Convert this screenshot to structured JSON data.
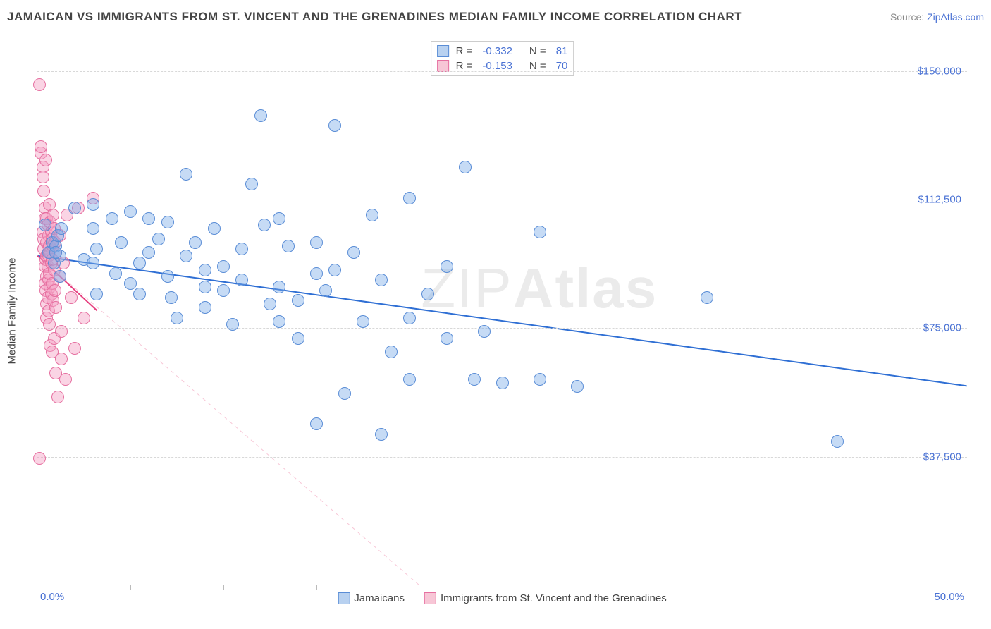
{
  "title": "JAMAICAN VS IMMIGRANTS FROM ST. VINCENT AND THE GRENADINES MEDIAN FAMILY INCOME CORRELATION CHART",
  "source_prefix": "Source: ",
  "source_link": "ZipAtlas.com",
  "watermark_a": "ZIP",
  "watermark_b": "Atlas",
  "axis": {
    "y_title": "Median Family Income",
    "x_min_label": "0.0%",
    "x_max_label": "50.0%",
    "xlim": [
      0,
      50
    ],
    "ylim": [
      0,
      160000
    ],
    "y_ticks": [
      37500,
      75000,
      112500,
      150000
    ],
    "y_tick_labels": [
      "$37,500",
      "$75,000",
      "$112,500",
      "$150,000"
    ],
    "x_tick_positions": [
      0,
      5,
      10,
      15,
      20,
      25,
      30,
      35,
      40,
      45,
      50
    ],
    "grid_color": "#d8d8d8",
    "axis_color": "#bbbbbb",
    "text_color": "#444444",
    "value_color": "#4a72d4",
    "y_label_fontsize": 15,
    "title_fontsize": 17
  },
  "legend_top": {
    "rows": [
      {
        "swatch_fill": "#b8d1f0",
        "swatch_border": "#5a8dd6",
        "r_label": "R =",
        "r_value": "-0.332",
        "n_label": "N =",
        "n_value": "81"
      },
      {
        "swatch_fill": "#f7c6d6",
        "swatch_border": "#e66fa0",
        "r_label": "R =",
        "r_value": "-0.153",
        "n_label": "N =",
        "n_value": "70"
      }
    ]
  },
  "legend_bottom": {
    "items": [
      {
        "swatch_fill": "#b8d1f0",
        "swatch_border": "#5a8dd6",
        "label": "Jamaicans"
      },
      {
        "swatch_fill": "#f7c6d6",
        "swatch_border": "#e66fa0",
        "label": "Immigrants from St. Vincent and the Grenadines"
      }
    ]
  },
  "series": {
    "blue": {
      "fill": "rgba(120,170,230,0.42)",
      "stroke": "#5a8dd6",
      "radius": 9,
      "reg_line": {
        "x1": 0,
        "y1": 96000,
        "x2": 50,
        "y2": 58000,
        "color": "#2f6fd4",
        "width": 2
      },
      "reg_dash": {
        "x1": 0,
        "y1": 96000,
        "x2": 20.5,
        "y2": 0,
        "color": "#f7c6d6",
        "width": 1
      },
      "points": [
        [
          0.4,
          105000
        ],
        [
          0.6,
          97000
        ],
        [
          0.8,
          100000
        ],
        [
          0.9,
          94000
        ],
        [
          1.0,
          99000
        ],
        [
          1.1,
          102000
        ],
        [
          1.2,
          96000
        ],
        [
          1.3,
          104000
        ],
        [
          1.0,
          97000
        ],
        [
          1.2,
          90000
        ],
        [
          2.0,
          110000
        ],
        [
          2.5,
          95000
        ],
        [
          3.0,
          111000
        ],
        [
          3.0,
          94000
        ],
        [
          3.0,
          104000
        ],
        [
          3.2,
          98000
        ],
        [
          3.2,
          85000
        ],
        [
          4.0,
          107000
        ],
        [
          4.2,
          91000
        ],
        [
          4.5,
          100000
        ],
        [
          5.0,
          109000
        ],
        [
          5.0,
          88000
        ],
        [
          5.5,
          94000
        ],
        [
          5.5,
          85000
        ],
        [
          6.0,
          107000
        ],
        [
          6.0,
          97000
        ],
        [
          6.5,
          101000
        ],
        [
          7.0,
          90000
        ],
        [
          7.0,
          106000
        ],
        [
          7.2,
          84000
        ],
        [
          7.5,
          78000
        ],
        [
          8.0,
          96000
        ],
        [
          8.0,
          120000
        ],
        [
          8.5,
          100000
        ],
        [
          9.0,
          92000
        ],
        [
          9.0,
          87000
        ],
        [
          9.0,
          81000
        ],
        [
          9.5,
          104000
        ],
        [
          10.0,
          93000
        ],
        [
          10.0,
          86000
        ],
        [
          10.5,
          76000
        ],
        [
          11.0,
          98000
        ],
        [
          11.0,
          89000
        ],
        [
          11.5,
          117000
        ],
        [
          12.0,
          137000
        ],
        [
          12.2,
          105000
        ],
        [
          12.5,
          82000
        ],
        [
          13.0,
          107000
        ],
        [
          13.0,
          87000
        ],
        [
          13.0,
          77000
        ],
        [
          13.5,
          99000
        ],
        [
          14.0,
          83000
        ],
        [
          14.0,
          72000
        ],
        [
          15.0,
          100000
        ],
        [
          15.0,
          91000
        ],
        [
          15.0,
          47000
        ],
        [
          15.5,
          86000
        ],
        [
          16.0,
          134000
        ],
        [
          16.0,
          92000
        ],
        [
          16.5,
          56000
        ],
        [
          17.0,
          97000
        ],
        [
          17.5,
          77000
        ],
        [
          18.0,
          108000
        ],
        [
          18.5,
          44000
        ],
        [
          18.5,
          89000
        ],
        [
          19.0,
          68000
        ],
        [
          20.0,
          113000
        ],
        [
          20.0,
          78000
        ],
        [
          20.0,
          60000
        ],
        [
          21.0,
          85000
        ],
        [
          22.0,
          72000
        ],
        [
          22.0,
          93000
        ],
        [
          23.0,
          122000
        ],
        [
          23.5,
          60000
        ],
        [
          24.0,
          74000
        ],
        [
          25.0,
          59000
        ],
        [
          27.0,
          103000
        ],
        [
          27.0,
          60000
        ],
        [
          29.0,
          58000
        ],
        [
          36.0,
          84000
        ],
        [
          43.0,
          42000
        ]
      ]
    },
    "pink": {
      "fill": "rgba(244,160,195,0.45)",
      "stroke": "#e66fa0",
      "radius": 9,
      "reg_line": {
        "x1": 0,
        "y1": 96000,
        "x2": 3.2,
        "y2": 80000,
        "color": "#e63e7e",
        "width": 2
      },
      "points": [
        [
          0.1,
          146000
        ],
        [
          0.1,
          37000
        ],
        [
          0.2,
          126000
        ],
        [
          0.2,
          128000
        ],
        [
          0.3,
          122000
        ],
        [
          0.3,
          119000
        ],
        [
          0.3,
          103000
        ],
        [
          0.35,
          115000
        ],
        [
          0.35,
          101000
        ],
        [
          0.35,
          98000
        ],
        [
          0.4,
          110000
        ],
        [
          0.4,
          107000
        ],
        [
          0.4,
          93000
        ],
        [
          0.4,
          88000
        ],
        [
          0.45,
          124000
        ],
        [
          0.45,
          95000
        ],
        [
          0.45,
          86000
        ],
        [
          0.5,
          107000
        ],
        [
          0.5,
          100000
        ],
        [
          0.5,
          96000
        ],
        [
          0.5,
          90000
        ],
        [
          0.5,
          82000
        ],
        [
          0.5,
          78000
        ],
        [
          0.55,
          105000
        ],
        [
          0.55,
          98000
        ],
        [
          0.55,
          93000
        ],
        [
          0.55,
          84000
        ],
        [
          0.6,
          102000
        ],
        [
          0.6,
          96000
        ],
        [
          0.6,
          89000
        ],
        [
          0.6,
          80000
        ],
        [
          0.65,
          111000
        ],
        [
          0.65,
          99000
        ],
        [
          0.65,
          91000
        ],
        [
          0.65,
          76000
        ],
        [
          0.7,
          106000
        ],
        [
          0.7,
          97000
        ],
        [
          0.7,
          87000
        ],
        [
          0.7,
          70000
        ],
        [
          0.75,
          103000
        ],
        [
          0.75,
          94000
        ],
        [
          0.75,
          85000
        ],
        [
          0.8,
          101000
        ],
        [
          0.8,
          95000
        ],
        [
          0.8,
          88000
        ],
        [
          0.8,
          68000
        ],
        [
          0.85,
          108000
        ],
        [
          0.85,
          99000
        ],
        [
          0.85,
          83000
        ],
        [
          0.9,
          104000
        ],
        [
          0.9,
          92000
        ],
        [
          0.9,
          72000
        ],
        [
          0.95,
          100000
        ],
        [
          0.95,
          86000
        ],
        [
          1.0,
          97000
        ],
        [
          1.0,
          81000
        ],
        [
          1.0,
          62000
        ],
        [
          1.1,
          55000
        ],
        [
          1.2,
          102000
        ],
        [
          1.2,
          90000
        ],
        [
          1.3,
          74000
        ],
        [
          1.3,
          66000
        ],
        [
          1.4,
          94000
        ],
        [
          1.5,
          60000
        ],
        [
          1.6,
          108000
        ],
        [
          1.8,
          84000
        ],
        [
          2.0,
          69000
        ],
        [
          2.2,
          110000
        ],
        [
          2.5,
          78000
        ],
        [
          3.0,
          113000
        ]
      ]
    }
  }
}
